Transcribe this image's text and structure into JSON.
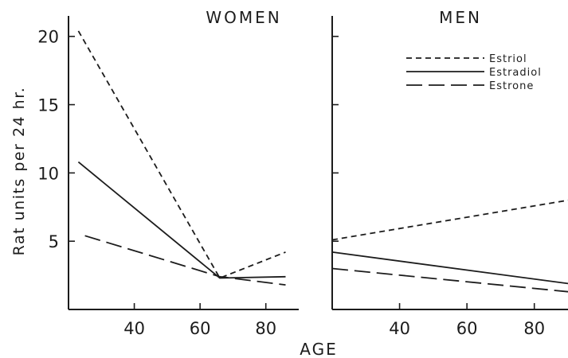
{
  "chart_data": [
    {
      "type": "line",
      "title": "WOMEN",
      "xlabel": "AGE",
      "ylabel": "Rat units per 24 hr.",
      "xlim": [
        20,
        90
      ],
      "ylim": [
        0,
        21.5
      ],
      "xticks": [
        40,
        60,
        80
      ],
      "yticks": [
        5,
        10,
        15,
        20
      ],
      "series": [
        {
          "name": "Estriol",
          "style": "short-dash",
          "x": [
            23,
            66,
            86
          ],
          "y": [
            20.4,
            2.3,
            4.2
          ]
        },
        {
          "name": "Estradiol",
          "style": "solid",
          "x": [
            23,
            66,
            86
          ],
          "y": [
            10.8,
            2.3,
            2.4
          ]
        },
        {
          "name": "Estrone",
          "style": "long-dash",
          "x": [
            25,
            66,
            86
          ],
          "y": [
            5.4,
            2.4,
            1.8
          ]
        }
      ]
    },
    {
      "type": "line",
      "title": "MEN",
      "xlim": [
        20,
        90
      ],
      "ylim": [
        0,
        21.5
      ],
      "xticks": [
        40,
        60,
        80
      ],
      "yticks": [
        5,
        10,
        15,
        20
      ],
      "legend": "top-right",
      "series": [
        {
          "name": "Estriol",
          "style": "short-dash",
          "x": [
            20,
            90
          ],
          "y": [
            5.1,
            8.0
          ]
        },
        {
          "name": "Estradiol",
          "style": "solid",
          "x": [
            20,
            90
          ],
          "y": [
            4.2,
            1.9
          ]
        },
        {
          "name": "Estrone",
          "style": "long-dash",
          "x": [
            20,
            90
          ],
          "y": [
            3.0,
            1.3
          ]
        }
      ]
    }
  ],
  "colors": {
    "ink": "#1c1c1c",
    "background": "#ffffff"
  }
}
